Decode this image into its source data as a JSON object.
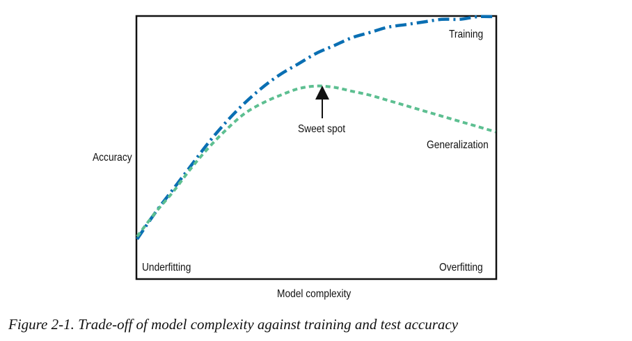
{
  "chart_data": {
    "type": "line",
    "xlabel": "Model complexity",
    "ylabel": "Accuracy",
    "xlim": [
      0,
      1
    ],
    "ylim": [
      0,
      1
    ],
    "grid": false,
    "series": [
      {
        "name": "Training",
        "color": "#0a6fb3",
        "style": "dash-dot",
        "x": [
          0,
          0.05,
          0.1,
          0.15,
          0.2,
          0.25,
          0.3,
          0.35,
          0.4,
          0.45,
          0.5,
          0.55,
          0.6,
          0.65,
          0.7,
          0.75,
          0.8,
          0.85,
          0.9,
          0.95,
          1
        ],
        "y": [
          0.15,
          0.25,
          0.34,
          0.43,
          0.52,
          0.6,
          0.67,
          0.73,
          0.78,
          0.82,
          0.86,
          0.89,
          0.92,
          0.94,
          0.96,
          0.97,
          0.98,
          0.99,
          0.99,
          1.0,
          1.0
        ]
      },
      {
        "name": "Generalization",
        "color": "#5dbf91",
        "style": "dashed",
        "x": [
          0,
          0.05,
          0.1,
          0.15,
          0.2,
          0.25,
          0.3,
          0.35,
          0.4,
          0.45,
          0.5,
          0.55,
          0.6,
          0.65,
          0.7,
          0.75,
          0.8,
          0.85,
          0.9,
          0.95,
          1
        ],
        "y": [
          0.16,
          0.25,
          0.33,
          0.42,
          0.5,
          0.57,
          0.63,
          0.67,
          0.7,
          0.725,
          0.735,
          0.73,
          0.715,
          0.7,
          0.68,
          0.66,
          0.64,
          0.62,
          0.6,
          0.58,
          0.56
        ]
      }
    ],
    "annotations": [
      {
        "text": "Sweet spot",
        "arrow_to": [
          0.515,
          0.74
        ]
      },
      {
        "text": "Underfitting",
        "at": "bottom-left"
      },
      {
        "text": "Overfitting",
        "at": "bottom-right"
      }
    ]
  },
  "caption": "Figure 2-1. Trade-off of model complexity against training and test accuracy"
}
